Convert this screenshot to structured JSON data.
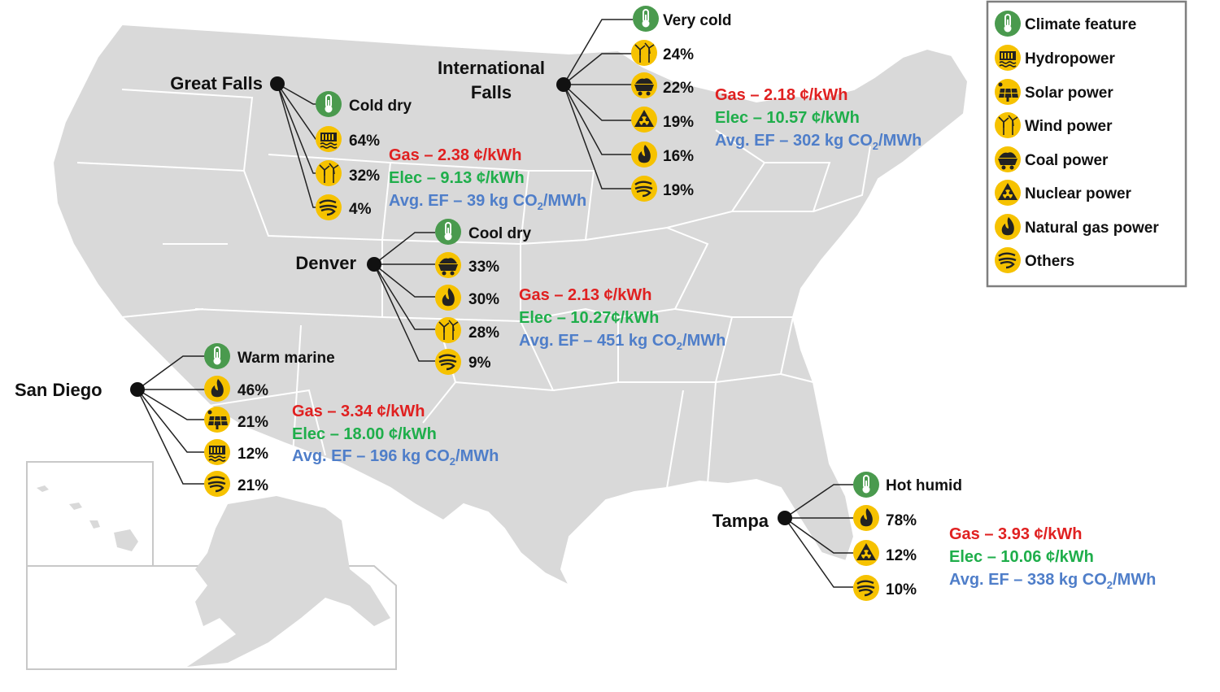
{
  "colors": {
    "gas": "#e02020",
    "elec": "#1fae4b",
    "ef": "#4f7ec9",
    "climate_icon": "#4a9a4e",
    "energy_icon": "#f6c200",
    "map_fill": "#d9d9d9"
  },
  "legend": [
    {
      "icon": "thermometer-icon",
      "label": "Climate feature"
    },
    {
      "icon": "hydropower-icon",
      "label": "Hydropower"
    },
    {
      "icon": "solar-power-icon",
      "label": "Solar power"
    },
    {
      "icon": "wind-power-icon",
      "label": "Wind power"
    },
    {
      "icon": "coal-power-icon",
      "label": "Coal power"
    },
    {
      "icon": "nuclear-power-icon",
      "label": "Nuclear power"
    },
    {
      "icon": "natural-gas-icon",
      "label": "Natural gas power"
    },
    {
      "icon": "others-icon",
      "label": "Others"
    }
  ],
  "cities": [
    {
      "name": "Great Falls",
      "climate": "Cold dry",
      "mix": [
        {
          "icon": "hydropower-icon",
          "value": "64%"
        },
        {
          "icon": "wind-power-icon",
          "value": "32%"
        },
        {
          "icon": "others-icon",
          "value": "4%"
        }
      ],
      "gas": "Gas – 2.38 ¢/kWh",
      "elec": "Elec – 9.13 ¢/kWh",
      "ef_prefix": "Avg. EF – 39 kg CO",
      "ef_sub": "2",
      "ef_suffix": "/MWh"
    },
    {
      "name_line1": "International",
      "name_line2": "Falls",
      "climate": "Very cold",
      "mix": [
        {
          "icon": "wind-power-icon",
          "value": "24%"
        },
        {
          "icon": "coal-power-icon",
          "value": "22%"
        },
        {
          "icon": "nuclear-power-icon",
          "value": "19%"
        },
        {
          "icon": "natural-gas-icon",
          "value": "16%"
        },
        {
          "icon": "others-icon",
          "value": "19%"
        }
      ],
      "gas": "Gas – 2.18 ¢/kWh",
      "elec": "Elec – 10.57 ¢/kWh",
      "ef_prefix": "Avg. EF – 302 kg CO",
      "ef_sub": "2",
      "ef_suffix": "/MWh"
    },
    {
      "name": "Denver",
      "climate": "Cool dry",
      "mix": [
        {
          "icon": "coal-power-icon",
          "value": "33%"
        },
        {
          "icon": "natural-gas-icon",
          "value": "30%"
        },
        {
          "icon": "wind-power-icon",
          "value": "28%"
        },
        {
          "icon": "others-icon",
          "value": "9%"
        }
      ],
      "gas": "Gas – 2.13 ¢/kWh",
      "elec": "Elec – 10.27¢/kWh",
      "ef_prefix": "Avg. EF – 451 kg CO",
      "ef_sub": "2",
      "ef_suffix": "/MWh"
    },
    {
      "name": "San Diego",
      "climate": "Warm marine",
      "mix": [
        {
          "icon": "natural-gas-icon",
          "value": "46%"
        },
        {
          "icon": "solar-power-icon",
          "value": "21%"
        },
        {
          "icon": "hydropower-icon",
          "value": "12%"
        },
        {
          "icon": "others-icon",
          "value": "21%"
        }
      ],
      "gas": "Gas – 3.34 ¢/kWh",
      "elec": "Elec – 18.00 ¢/kWh",
      "ef_prefix": "Avg. EF – 196 kg CO",
      "ef_sub": "2",
      "ef_suffix": "/MWh"
    },
    {
      "name": "Tampa",
      "climate": "Hot humid",
      "mix": [
        {
          "icon": "natural-gas-icon",
          "value": "78%"
        },
        {
          "icon": "nuclear-power-icon",
          "value": "12%"
        },
        {
          "icon": "others-icon",
          "value": "10%"
        }
      ],
      "gas": "Gas – 3.93 ¢/kWh",
      "elec": "Elec – 10.06 ¢/kWh",
      "ef_prefix": "Avg. EF – 338 kg CO",
      "ef_sub": "2",
      "ef_suffix": "/MWh"
    }
  ]
}
